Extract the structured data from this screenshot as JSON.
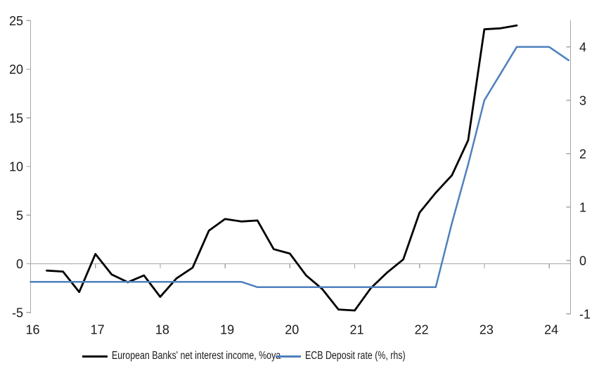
{
  "chart_data": {
    "type": "line",
    "title": "",
    "x_axis": {
      "tick_labels": [
        "16",
        "17",
        "18",
        "19",
        "20",
        "21",
        "22",
        "23",
        "24"
      ],
      "tick_values": [
        16,
        17,
        18,
        19,
        20,
        21,
        22,
        23,
        24
      ],
      "min": 16,
      "max": 24.33
    },
    "left_axis": {
      "tick_labels": [
        "-5",
        "0",
        "5",
        "10",
        "15",
        "20",
        "25"
      ],
      "tick_values": [
        -5,
        0,
        5,
        10,
        15,
        20,
        25
      ],
      "min": -5,
      "max": 25
    },
    "right_axis": {
      "tick_labels": [
        "-1",
        "0",
        "1",
        "2",
        "3",
        "4"
      ],
      "tick_values": [
        -1,
        0,
        1,
        2,
        3,
        4
      ],
      "min": -1,
      "max": 4.45
    },
    "grid": "zero-line-only",
    "legend_position": "bottom",
    "series": [
      {
        "name": "European Banks' net interest income, %oya",
        "axis": "left",
        "color": "#000000",
        "stroke_width": 2.8,
        "points": [
          [
            16.25,
            -0.7
          ],
          [
            16.5,
            -0.8
          ],
          [
            16.75,
            -2.9
          ],
          [
            17.0,
            1.0
          ],
          [
            17.25,
            -1.1
          ],
          [
            17.5,
            -1.9
          ],
          [
            17.75,
            -1.2
          ],
          [
            18.0,
            -3.4
          ],
          [
            18.25,
            -1.5
          ],
          [
            18.5,
            -0.4
          ],
          [
            18.75,
            3.4
          ],
          [
            19.0,
            4.6
          ],
          [
            19.25,
            4.35
          ],
          [
            19.5,
            4.45
          ],
          [
            19.75,
            1.5
          ],
          [
            20.0,
            1.05
          ],
          [
            20.25,
            -1.2
          ],
          [
            20.5,
            -2.6
          ],
          [
            20.75,
            -4.7
          ],
          [
            21.0,
            -4.8
          ],
          [
            21.25,
            -2.5
          ],
          [
            21.5,
            -0.9
          ],
          [
            21.75,
            0.45
          ],
          [
            22.0,
            5.25
          ],
          [
            22.25,
            7.3
          ],
          [
            22.5,
            9.1
          ],
          [
            22.75,
            12.7
          ],
          [
            23.0,
            24.1
          ],
          [
            23.25,
            24.2
          ],
          [
            23.5,
            24.5
          ]
        ]
      },
      {
        "name": "ECB Deposit rate (%, rhs)",
        "axis": "right",
        "color": "#4E80BC",
        "stroke_width": 2.5,
        "points": [
          [
            16.0,
            -0.4
          ],
          [
            19.25,
            -0.4
          ],
          [
            19.5,
            -0.5
          ],
          [
            22.25,
            -0.5
          ],
          [
            22.5,
            0.7
          ],
          [
            22.75,
            1.8
          ],
          [
            23.0,
            3.0
          ],
          [
            23.25,
            3.5
          ],
          [
            23.5,
            4.0
          ],
          [
            24.0,
            4.0
          ],
          [
            24.3,
            3.75
          ]
        ]
      }
    ]
  },
  "legend": {
    "items": [
      {
        "label": "European Banks' net interest income, %oya",
        "color": "#000000"
      },
      {
        "label": "ECB Deposit rate (%, rhs)",
        "color": "#4E80BC"
      }
    ]
  },
  "colors": {
    "axis": "#A6A6A6",
    "text": "#1a1a1a",
    "background": "#FFFFFF"
  }
}
